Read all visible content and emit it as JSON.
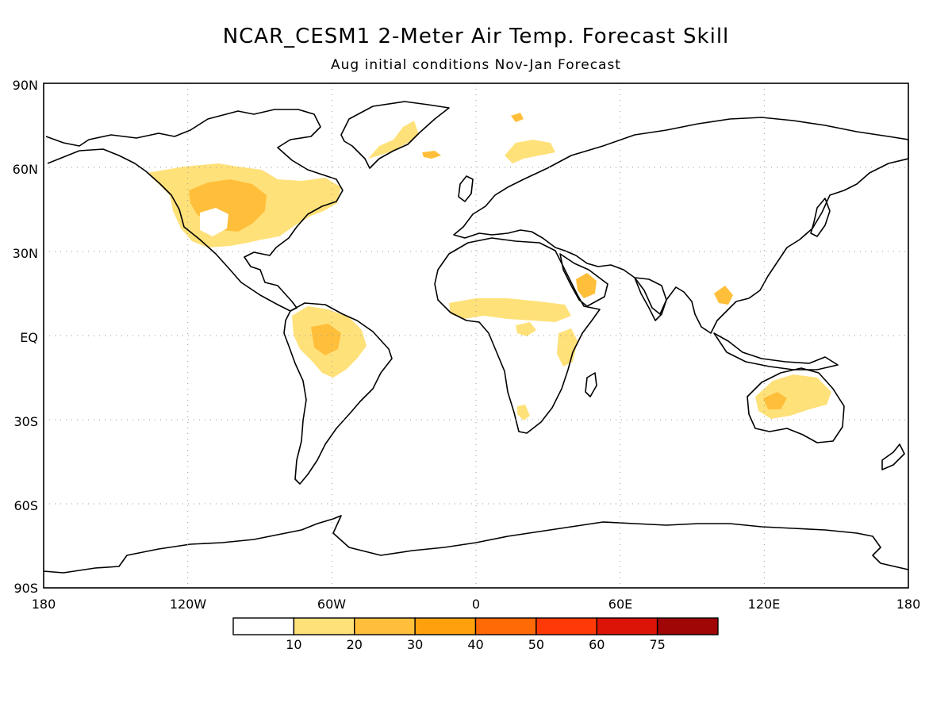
{
  "title": "NCAR_CESM1 2-Meter Air Temp. Forecast Skill",
  "subtitle": "Aug initial conditions  Nov-Jan Forecast",
  "map": {
    "lat_labels": [
      "90N",
      "60N",
      "30N",
      "EQ",
      "30S",
      "60S",
      "90S"
    ],
    "lon_labels": [
      "180",
      "120W",
      "60W",
      "0",
      "60E",
      "120E",
      "180"
    ],
    "lon_range": [
      -180,
      180
    ],
    "lat_range": [
      -90,
      90
    ],
    "grid": "dotted"
  },
  "colorbar": {
    "labels": [
      "10",
      "20",
      "30",
      "40",
      "50",
      "60",
      "75"
    ],
    "colors": [
      "#ffffff",
      "#ffe17a",
      "#ffbf3b",
      "#ffa00c",
      "#ff6a06",
      "#ff3a06",
      "#dc1406",
      "#a00606"
    ]
  },
  "skill_regions_colors": {
    "low": "#ffe17a",
    "mid": "#ffbf3b",
    "high": "#ffa00c"
  }
}
